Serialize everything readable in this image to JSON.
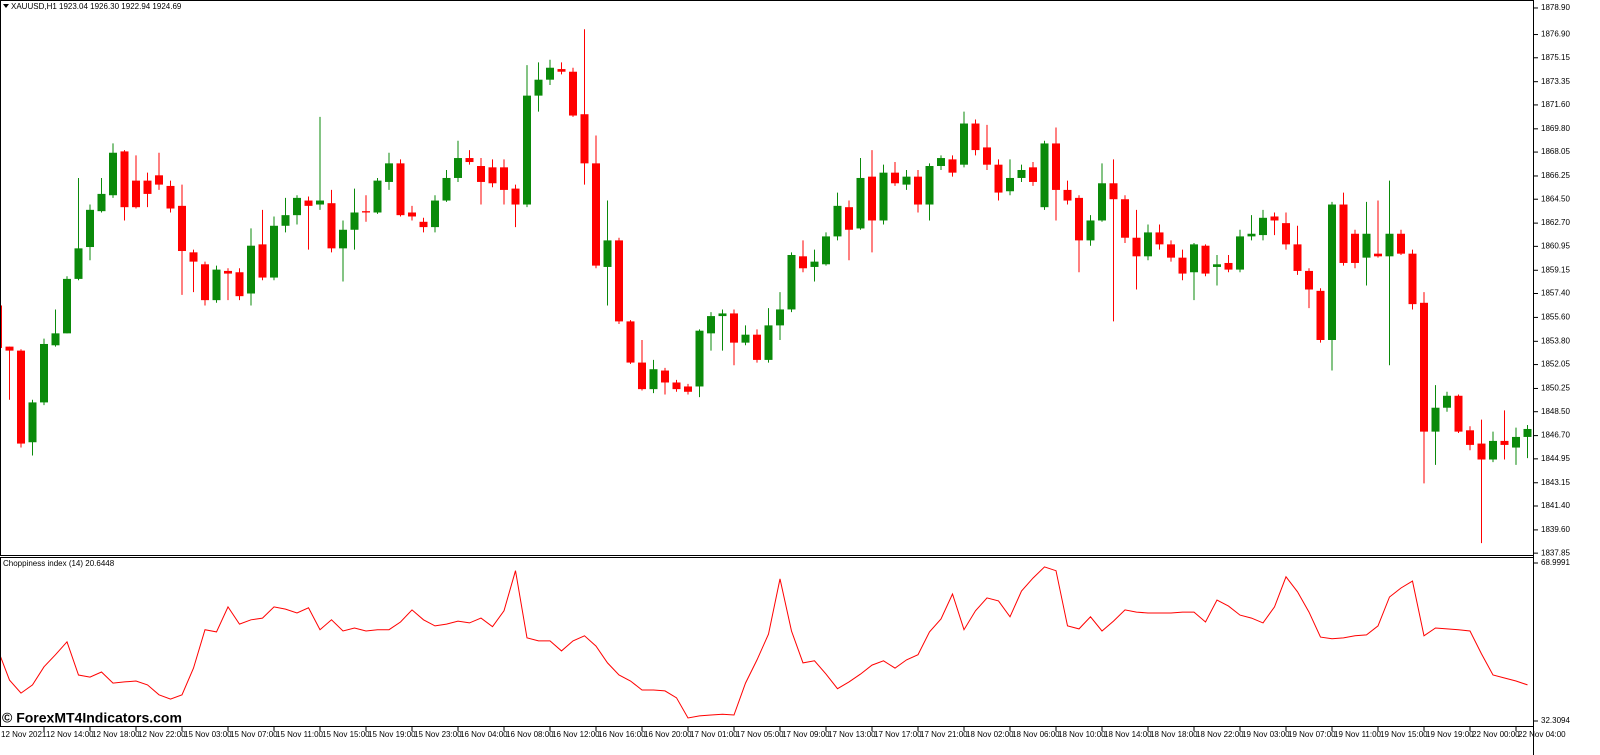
{
  "chart_data": [
    {
      "type": "candlestick",
      "title": "XAUUSD,H1 1923.04 1926.30 1922.94 1924.69",
      "categories": [
        "12 Nov 2021",
        null,
        null,
        null,
        "12 Nov 14:00",
        null,
        null,
        null,
        "12 Nov 18:00",
        null,
        null,
        null,
        "12 Nov 22:00",
        null,
        null,
        null,
        "15 Nov 03:00",
        null,
        null,
        null,
        "15 Nov 07:00",
        null,
        null,
        null,
        "15 Nov 11:00",
        null,
        null,
        null,
        "15 Nov 15:00",
        null,
        null,
        null,
        "15 Nov 19:00",
        null,
        null,
        null,
        "15 Nov 23:00",
        null,
        null,
        null,
        "16 Nov 04:00",
        null,
        null,
        null,
        "16 Nov 08:00",
        null,
        null,
        null,
        "16 Nov 12:00",
        null,
        null,
        null,
        "16 Nov 16:00",
        null,
        null,
        null,
        "16 Nov 20:00",
        null,
        null,
        null,
        "17 Nov 01:00",
        null,
        null,
        null,
        "17 Nov 05:00",
        null,
        null,
        null,
        "17 Nov 09:00",
        null,
        null,
        null,
        "17 Nov 13:00",
        null,
        null,
        null,
        "17 Nov 17:00",
        null,
        null,
        null,
        "17 Nov 21:00",
        null,
        null,
        null,
        "18 Nov 02:00",
        null,
        null,
        null,
        "18 Nov 06:00",
        null,
        null,
        null,
        "18 Nov 10:00",
        null,
        null,
        null,
        "18 Nov 14:00",
        null,
        null,
        null,
        "18 Nov 18:00",
        null,
        null,
        null,
        "18 Nov 22:00",
        null,
        null,
        null,
        "19 Nov 03:00",
        null,
        null,
        null,
        "19 Nov 07:00",
        null,
        null,
        null,
        "19 Nov 11:00",
        null,
        null,
        null,
        "19 Nov 15:00",
        null,
        null,
        null,
        "19 Nov 19:00",
        null,
        null,
        null,
        "22 Nov 00:00",
        null,
        null,
        null,
        "22 Nov 04:00",
        null
      ],
      "open": [
        1856.5,
        1853.4,
        1853.1,
        1846.2,
        1849.2,
        1853.5,
        1854.4,
        1858.5,
        1860.9,
        1863.6,
        1864.8,
        1868.1,
        1865.9,
        1865.9,
        1866.3,
        1865.5,
        1864.0,
        1860.5,
        1859.6,
        1856.9,
        1859.1,
        1859.0,
        1857.4,
        1861.1,
        1858.6,
        1862.5,
        1863.3,
        1864.4,
        1864.1,
        1864.2,
        1860.8,
        1862.2,
        1863.6,
        1863.5,
        1865.8,
        1867.2,
        1863.5,
        1862.8,
        1862.4,
        1864.4,
        1866.1,
        1867.6,
        1867.0,
        1866.9,
        1866.9,
        1865.3,
        1864.1,
        1872.3,
        1873.5,
        1874.3,
        1874.1,
        1870.9,
        1867.2,
        1859.4,
        1861.4,
        1855.3,
        1852.2,
        1850.2,
        1851.6,
        1850.7,
        1850.4,
        1850.4,
        1854.4,
        1855.7,
        1855.9,
        1853.7,
        1854.3,
        1852.4,
        1855.0,
        1856.2,
        1860.2,
        1859.4,
        1859.6,
        1861.7,
        1863.9,
        1862.3,
        1866.2,
        1862.9,
        1866.5,
        1865.6,
        1866.2,
        1864.1,
        1867.0,
        1867.5,
        1867.1,
        1870.2,
        1868.4,
        1867.1,
        1865.1,
        1866.1,
        1866.9,
        1863.9,
        1868.7,
        1865.2,
        1864.6,
        1861.4,
        1862.9,
        1865.7,
        1864.5,
        1861.6,
        1860.2,
        1862.0,
        1861.1,
        1860.1,
        1859.0,
        1861.0,
        1859.4,
        1859.7,
        1859.2,
        1861.7,
        1861.8,
        1863.2,
        1862.7,
        1861.1,
        1859.1,
        1857.6,
        1853.9,
        1864.1,
        1861.9,
        1860.1,
        1860.4,
        1860.2,
        1861.9,
        1860.4,
        1856.7,
        1847.0,
        1848.8,
        1849.7,
        1847.1,
        1846.1,
        1844.9,
        1846.3,
        1845.8,
        1846.6
      ],
      "high": [
        1856.5,
        1853.4,
        1853.2,
        1849.4,
        1854.0,
        1856.2,
        1858.7,
        1866.1,
        1864.1,
        1866.1,
        1868.7,
        1868.2,
        1867.8,
        1866.5,
        1868.0,
        1865.9,
        1865.6,
        1860.7,
        1859.8,
        1859.5,
        1859.3,
        1859.3,
        1862.3,
        1863.7,
        1863.2,
        1864.6,
        1864.8,
        1864.7,
        1870.7,
        1865.2,
        1862.9,
        1865.3,
        1864.8,
        1866.1,
        1868.0,
        1867.5,
        1864.0,
        1863.1,
        1864.8,
        1866.7,
        1868.9,
        1868.2,
        1867.6,
        1867.5,
        1867.5,
        1865.6,
        1874.6,
        1874.8,
        1875.0,
        1874.8,
        1874.4,
        1877.3,
        1869.3,
        1864.4,
        1861.6,
        1855.4,
        1853.9,
        1852.4,
        1851.8,
        1850.9,
        1850.6,
        1854.7,
        1856.0,
        1856.2,
        1856.2,
        1855.0,
        1854.7,
        1856.3,
        1857.5,
        1860.5,
        1861.4,
        1860.7,
        1862.0,
        1865.0,
        1864.4,
        1867.6,
        1868.2,
        1867.1,
        1867.3,
        1866.7,
        1866.7,
        1867.2,
        1867.8,
        1867.8,
        1871.1,
        1870.5,
        1870.1,
        1867.5,
        1867.5,
        1867.1,
        1867.3,
        1868.9,
        1869.9,
        1865.9,
        1864.8,
        1863.3,
        1867.2,
        1867.5,
        1864.8,
        1863.7,
        1862.6,
        1862.6,
        1861.4,
        1860.7,
        1861.2,
        1861.1,
        1860.3,
        1860.3,
        1862.2,
        1863.3,
        1863.7,
        1863.5,
        1863.5,
        1862.5,
        1859.3,
        1857.8,
        1864.3,
        1865.0,
        1862.2,
        1864.3,
        1864.4,
        1865.9,
        1862.2,
        1860.7,
        1857.5,
        1850.5,
        1850.0,
        1849.8,
        1847.4,
        1847.9,
        1847.0,
        1848.6,
        1847.3,
        1847.5
      ],
      "low": [
        1853.1,
        1849.4,
        1845.8,
        1845.2,
        1849.0,
        1853.4,
        1854.4,
        1858.4,
        1859.9,
        1863.5,
        1864.6,
        1862.9,
        1863.8,
        1863.9,
        1865.2,
        1863.5,
        1857.3,
        1857.5,
        1856.5,
        1856.7,
        1856.9,
        1856.9,
        1856.5,
        1858.4,
        1858.4,
        1862.0,
        1862.6,
        1860.7,
        1863.7,
        1860.5,
        1858.3,
        1860.7,
        1862.8,
        1863.4,
        1865.2,
        1863.2,
        1862.9,
        1862.0,
        1862.0,
        1864.3,
        1865.8,
        1867.1,
        1864.1,
        1865.4,
        1864.1,
        1862.4,
        1863.9,
        1871.1,
        1873.1,
        1873.9,
        1870.7,
        1865.6,
        1859.3,
        1856.5,
        1855.1,
        1852.1,
        1850.1,
        1849.9,
        1849.8,
        1850.0,
        1849.8,
        1849.6,
        1853.1,
        1853.1,
        1852.0,
        1853.5,
        1852.2,
        1852.2,
        1853.9,
        1856.0,
        1859.0,
        1858.3,
        1859.5,
        1861.4,
        1859.9,
        1862.2,
        1860.5,
        1862.6,
        1865.5,
        1865.2,
        1863.5,
        1862.9,
        1866.7,
        1866.2,
        1866.9,
        1867.8,
        1866.7,
        1864.4,
        1864.8,
        1865.8,
        1865.5,
        1863.7,
        1862.9,
        1864.1,
        1859.0,
        1861.0,
        1862.8,
        1855.3,
        1861.2,
        1857.7,
        1859.9,
        1860.7,
        1859.8,
        1858.4,
        1856.9,
        1858.7,
        1858.0,
        1859.0,
        1859.0,
        1861.4,
        1861.4,
        1861.8,
        1860.7,
        1858.8,
        1856.3,
        1853.7,
        1851.6,
        1859.5,
        1859.3,
        1858.0,
        1860.1,
        1852.0,
        1860.3,
        1856.2,
        1843.1,
        1844.5,
        1848.5,
        1846.9,
        1845.6,
        1838.6,
        1844.7,
        1844.9,
        1844.5,
        1845.0
      ],
      "close": [
        1853.3,
        1853.1,
        1846.1,
        1849.2,
        1853.6,
        1854.4,
        1858.5,
        1860.8,
        1863.7,
        1864.9,
        1868.0,
        1863.9,
        1863.9,
        1864.9,
        1865.6,
        1863.8,
        1860.6,
        1859.8,
        1856.9,
        1859.2,
        1858.9,
        1857.2,
        1861.0,
        1858.6,
        1862.5,
        1863.3,
        1864.6,
        1864.0,
        1864.4,
        1860.8,
        1862.2,
        1863.5,
        1863.5,
        1865.9,
        1867.2,
        1863.3,
        1863.2,
        1862.4,
        1864.4,
        1866.1,
        1867.6,
        1867.3,
        1865.8,
        1865.7,
        1865.2,
        1864.1,
        1872.3,
        1873.5,
        1874.4,
        1874.1,
        1870.8,
        1867.2,
        1859.5,
        1861.4,
        1855.3,
        1852.2,
        1850.2,
        1851.7,
        1850.7,
        1850.2,
        1850.0,
        1854.6,
        1855.7,
        1855.9,
        1853.7,
        1854.3,
        1852.4,
        1855.0,
        1856.2,
        1860.3,
        1859.3,
        1859.8,
        1861.7,
        1864.0,
        1862.2,
        1866.1,
        1862.9,
        1866.5,
        1865.7,
        1866.2,
        1864.1,
        1867.0,
        1867.6,
        1866.5,
        1870.2,
        1868.2,
        1867.1,
        1865.0,
        1866.1,
        1866.7,
        1865.8,
        1868.7,
        1865.2,
        1864.4,
        1861.4,
        1862.9,
        1865.7,
        1864.5,
        1861.6,
        1860.2,
        1862.0,
        1861.1,
        1860.1,
        1858.9,
        1861.1,
        1858.9,
        1859.6,
        1859.2,
        1861.7,
        1861.9,
        1863.1,
        1862.9,
        1861.1,
        1859.1,
        1857.7,
        1853.9,
        1864.1,
        1859.7,
        1859.7,
        1861.9,
        1860.2,
        1861.9,
        1860.4,
        1856.6,
        1847.0,
        1848.8,
        1849.7,
        1847.0,
        1846.0,
        1844.9,
        1846.3,
        1846.0,
        1846.6,
        1847.2
      ],
      "up_color": "#0a8a0a",
      "down_color": "#ff0000",
      "ylim": [
        1837.71,
        1879.35
      ],
      "yticks": [
        {
          "value": 1878.9,
          "label": "1878.90"
        },
        {
          "value": 1876.9,
          "label": "1876.90"
        },
        1875.15,
        1873.35,
        {
          "value": 1871.6,
          "label": "1871.60"
        },
        {
          "value": 1869.8,
          "label": "1869.80"
        },
        1868.05,
        1866.25,
        {
          "value": 1864.5,
          "label": "1864.50"
        },
        {
          "value": 1862.7,
          "label": "1862.70"
        },
        1860.95,
        1859.15,
        {
          "value": 1857.4,
          "label": "1857.40"
        },
        {
          "value": 1855.6,
          "label": "1855.60"
        },
        {
          "value": 1853.8,
          "label": "1853.80"
        },
        1852.05,
        1850.25,
        {
          "value": 1848.5,
          "label": "1848.50"
        },
        {
          "value": 1846.7,
          "label": "1846.70"
        },
        1844.95,
        1843.15,
        {
          "value": 1841.4,
          "label": "1841.40"
        },
        {
          "value": 1839.6,
          "label": "1839.60"
        },
        1837.85
      ]
    },
    {
      "type": "line",
      "title": "Choppiness index (14) 20.6448",
      "color": "#ff0000",
      "values": [
        48.8,
        41.8,
        38.8,
        40.7,
        44.9,
        47.7,
        50.7,
        43.0,
        42.5,
        43.7,
        41.1,
        41.4,
        41.6,
        40.7,
        38.4,
        37.4,
        38.4,
        44.6,
        53.5,
        53.0,
        58.8,
        54.8,
        55.8,
        56.2,
        58.8,
        58.3,
        57.4,
        58.6,
        53.5,
        55.8,
        53.2,
        53.9,
        53.2,
        53.5,
        53.5,
        55.3,
        58.1,
        55.8,
        54.4,
        54.8,
        55.5,
        55.1,
        56.2,
        54.2,
        57.9,
        67.2,
        51.6,
        50.9,
        50.9,
        48.6,
        50.9,
        52.1,
        49.7,
        45.8,
        43.0,
        41.6,
        39.5,
        39.5,
        39.3,
        37.7,
        33.0,
        33.5,
        33.7,
        33.9,
        33.7,
        41.1,
        46.5,
        52.5,
        65.3,
        53.2,
        45.8,
        46.3,
        43.2,
        39.8,
        41.4,
        43.2,
        45.3,
        46.3,
        44.6,
        46.5,
        47.7,
        53.0,
        56.0,
        61.8,
        53.5,
        57.9,
        60.9,
        60.2,
        56.5,
        62.5,
        65.5,
        68.1,
        67.2,
        54.4,
        53.7,
        56.5,
        53.2,
        55.5,
        58.1,
        57.6,
        57.4,
        57.4,
        57.4,
        57.6,
        57.6,
        55.3,
        60.4,
        59.0,
        56.9,
        56.2,
        55.1,
        58.8,
        65.8,
        62.3,
        57.6,
        51.8,
        51.4,
        51.6,
        52.1,
        52.3,
        54.4,
        61.1,
        63.2,
        64.8,
        52.1,
        53.9,
        53.7,
        53.5,
        53.2,
        47.9,
        43.0,
        42.3,
        41.6,
        40.7
      ],
      "ylim": [
        31.15,
        70.16
      ],
      "yticks": [
        68.9991,
        32.3094
      ]
    }
  ],
  "watermark": "© ForexMT4Indicators.com"
}
